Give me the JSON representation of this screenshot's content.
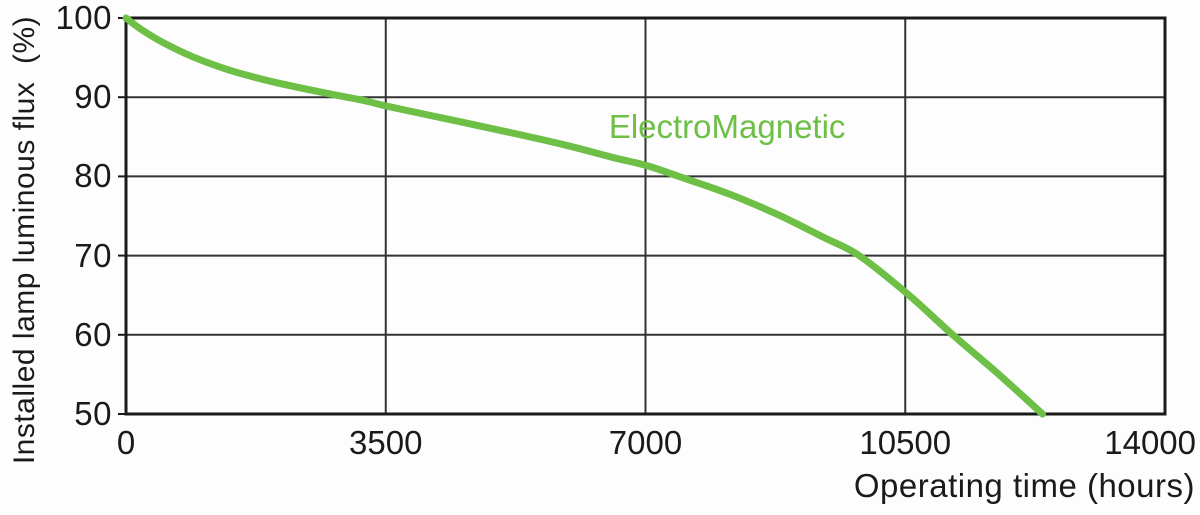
{
  "colors": {
    "background": "#fdfdfd",
    "axis": "#1a1a1a",
    "grid": "#333333",
    "text": "#1a1a1a",
    "curve": "#6dbf46"
  },
  "chart_data": {
    "type": "line",
    "title": "",
    "xlabel": "Operating time (hours)",
    "ylabel": "Installed lamp luminous flux  (%)",
    "xlim": [
      0,
      14000
    ],
    "ylim": [
      50,
      100
    ],
    "x_ticks": [
      0,
      3500,
      7000,
      10500,
      14000
    ],
    "y_ticks": [
      100,
      90,
      80,
      70,
      60,
      50
    ],
    "grid": true,
    "legend_position": "inline-annotation",
    "series": [
      {
        "name": "ElectroMagnetic",
        "color": "#6dbf46",
        "points": [
          [
            0,
            100
          ],
          [
            200,
            98.6
          ],
          [
            500,
            96.9
          ],
          [
            900,
            95.1
          ],
          [
            1400,
            93.4
          ],
          [
            2000,
            91.9
          ],
          [
            2700,
            90.5
          ],
          [
            3200,
            89.6
          ],
          [
            3500,
            88.9
          ],
          [
            4300,
            87.3
          ],
          [
            5100,
            85.7
          ],
          [
            5900,
            84.0
          ],
          [
            6600,
            82.3
          ],
          [
            7000,
            81.4
          ],
          [
            7450,
            80.0
          ],
          [
            8150,
            77.7
          ],
          [
            8800,
            75.1
          ],
          [
            9400,
            72.3
          ],
          [
            9880,
            70.0
          ],
          [
            10550,
            65.0
          ],
          [
            11140,
            60.0
          ],
          [
            11760,
            55.0
          ],
          [
            12350,
            50.0
          ]
        ]
      }
    ],
    "annotation": {
      "text": "ElectroMagnetic",
      "x_hours": 8100,
      "y_percent": 86.3
    }
  }
}
